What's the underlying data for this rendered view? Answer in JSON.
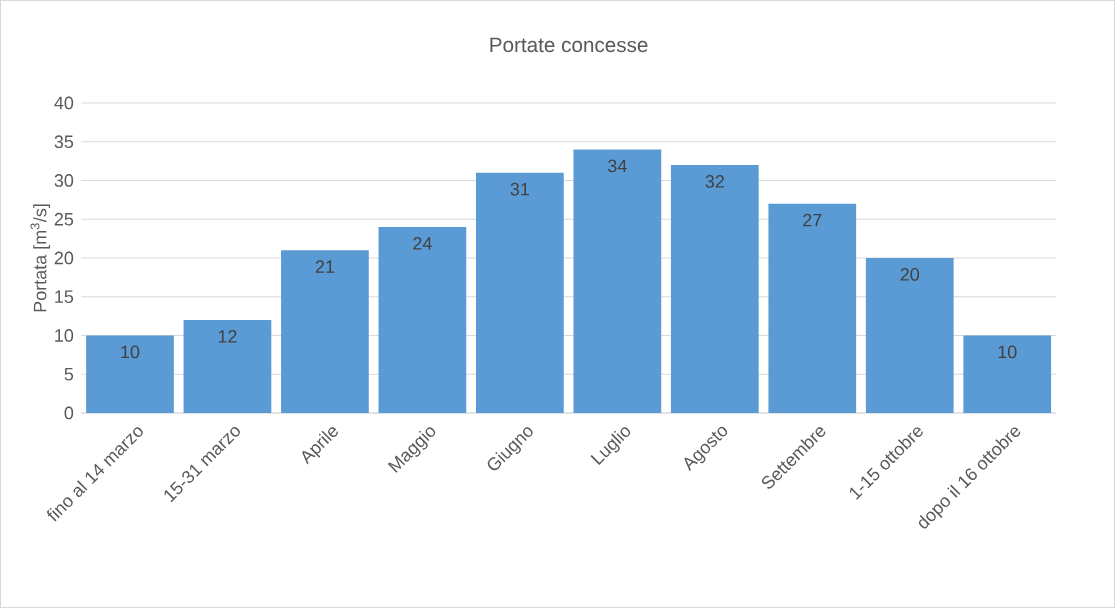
{
  "chart_data": {
    "type": "bar",
    "title": "Portate concesse",
    "ylabel": "Portata [m$^{3}$/s]",
    "categories": [
      "fino al 14 marzo",
      "15-31 marzo",
      "Aprile",
      "Maggio",
      "Giugno",
      "Luglio",
      "Agosto",
      "Settembre",
      "1-15 ottobre",
      "dopo il 16 ottobre"
    ],
    "values": [
      10,
      12,
      21,
      24,
      31,
      34,
      32,
      27,
      20,
      10
    ],
    "color": "#5b9bd5",
    "ylim": [
      0,
      40
    ],
    "yticks": [
      0,
      5,
      10,
      15,
      20,
      25,
      30,
      35,
      40
    ],
    "grid": "y",
    "data_labels": true
  }
}
